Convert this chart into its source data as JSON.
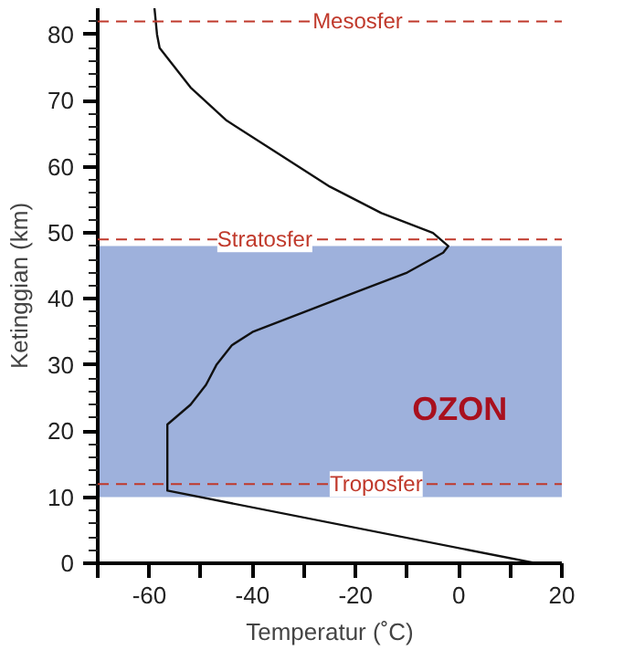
{
  "chart_data": {
    "type": "line",
    "xlabel": "Temperatur (˚C)",
    "ylabel": "Ketinggian (km)",
    "series": [
      {
        "color": "#111111",
        "x": [
          15,
          -56.5,
          -56.5,
          -52,
          -49,
          -47,
          -44,
          -40,
          -30,
          -20,
          -10,
          -3,
          -2,
          -5,
          -15,
          -25,
          -35,
          -45,
          -52,
          -57,
          -58,
          -58.5,
          -59
        ],
        "values": [
          0,
          11,
          21,
          24,
          27,
          30,
          33,
          35,
          38,
          41,
          44,
          47,
          48,
          50,
          53,
          57,
          62,
          67,
          72,
          77,
          78,
          80,
          84
        ]
      }
    ],
    "xlim": [
      -70,
      20
    ],
    "ylim": [
      0,
      84
    ],
    "xticks": [
      {
        "value": -70,
        "label": null
      },
      -60,
      -40,
      -20,
      0,
      20,
      {
        "value": -50,
        "label": null
      },
      {
        "value": -30,
        "label": null
      },
      {
        "value": -10,
        "label": null
      },
      {
        "value": 10,
        "label": null
      }
    ],
    "yticks": [
      0,
      10,
      20,
      30,
      40,
      50,
      60,
      70,
      80
    ],
    "ref_lines": [
      {
        "axis": "y",
        "value": 82,
        "label": "Mesosfer",
        "color": "#c0392b",
        "line_style": "dashed"
      },
      {
        "axis": "y",
        "value": 49,
        "label": "Stratosfer",
        "color": "#c0392b",
        "line_style": "dashed"
      },
      {
        "axis": "y",
        "value": 12,
        "label": "Troposfer",
        "color": "#c0392b",
        "line_style": "dashed"
      }
    ],
    "bands": [
      {
        "axis": "y",
        "from": 10,
        "to": 48,
        "label": "OZON",
        "color": "#8da3d6"
      }
    ],
    "grid": false,
    "marker": "none",
    "line_style": "solid"
  }
}
